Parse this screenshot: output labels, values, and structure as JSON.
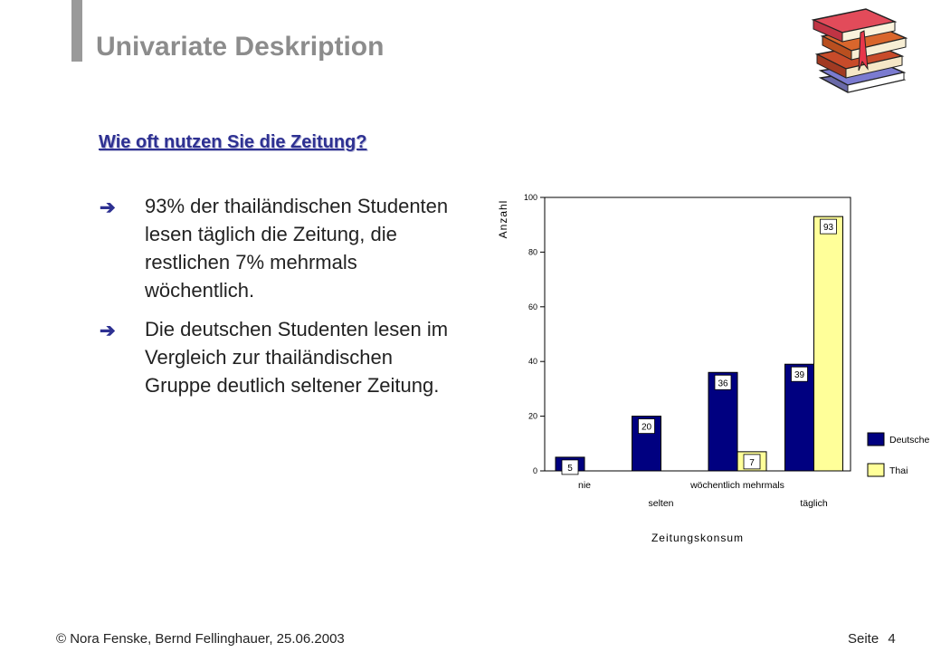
{
  "slide": {
    "title": "Univariate Deskription",
    "question": "Wie oft nutzen Sie die Zeitung?",
    "bullets": [
      "93% der thailändischen Studenten lesen täglich die Zeitung, die restlichen 7% mehrmals wöchentlich.",
      "Die deutschen Studenten lesen im Vergleich zur thailändischen Gruppe deutlich seltener Zeitung."
    ],
    "bullet_icon": "right-arrow-icon",
    "illustration": "stack-of-books-icon"
  },
  "footer": {
    "left": "© Nora Fenske, Bernd Fellinghauer, 25.06.2003",
    "page_label": "Seite",
    "page_number": "4"
  },
  "colors": {
    "title": "#8c8c8c",
    "question": "#2e3192",
    "deutsche": "#000080",
    "thai": "#ffff99"
  },
  "chart_data": {
    "type": "bar",
    "categories": [
      "nie",
      "selten",
      "wöchentlich mehrmals",
      "täglich"
    ],
    "series": [
      {
        "name": "Deutsche",
        "values": [
          5,
          20,
          36,
          39
        ],
        "color": "#000080"
      },
      {
        "name": "Thai",
        "values": [
          0,
          0,
          7,
          93
        ],
        "color": "#ffff99"
      }
    ],
    "data_labels": [
      [
        "5",
        "20",
        "36",
        "39"
      ],
      [
        null,
        null,
        "7",
        "93"
      ]
    ],
    "ylabel": "Anzahl",
    "xlabel": "Zeitungskonsum",
    "ylim": [
      0,
      100
    ],
    "yticks": [
      0,
      20,
      40,
      60,
      80,
      100
    ],
    "grid": false,
    "legend": "right"
  }
}
